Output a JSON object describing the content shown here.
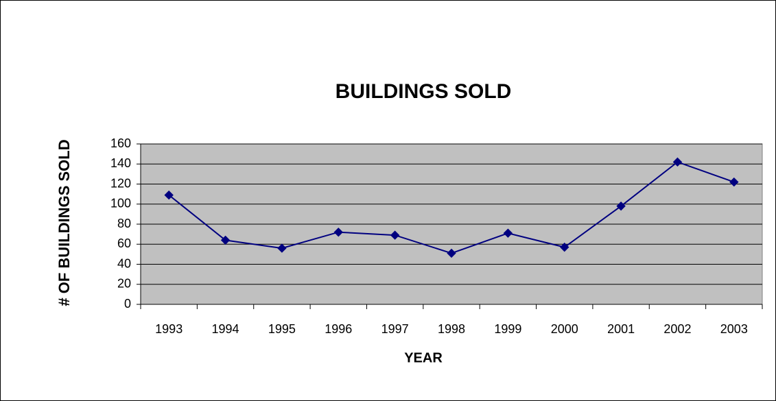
{
  "chart_data": {
    "type": "line",
    "title": "BUILDINGS SOLD",
    "x_label": "YEAR",
    "y_label": "# OF BUILDINGS SOLD",
    "categories": [
      "1993",
      "1994",
      "1995",
      "1996",
      "1997",
      "1998",
      "1999",
      "2000",
      "2001",
      "2002",
      "2003"
    ],
    "series": [
      {
        "name": "BUILDINGS SOLD",
        "color": "#000080",
        "values": [
          109,
          64,
          56,
          72,
          69,
          51,
          71,
          57,
          98,
          142,
          122
        ]
      }
    ],
    "ylim": [
      0,
      160
    ],
    "yticks": [
      0,
      20,
      40,
      60,
      80,
      100,
      120,
      140,
      160
    ],
    "grid": true
  }
}
